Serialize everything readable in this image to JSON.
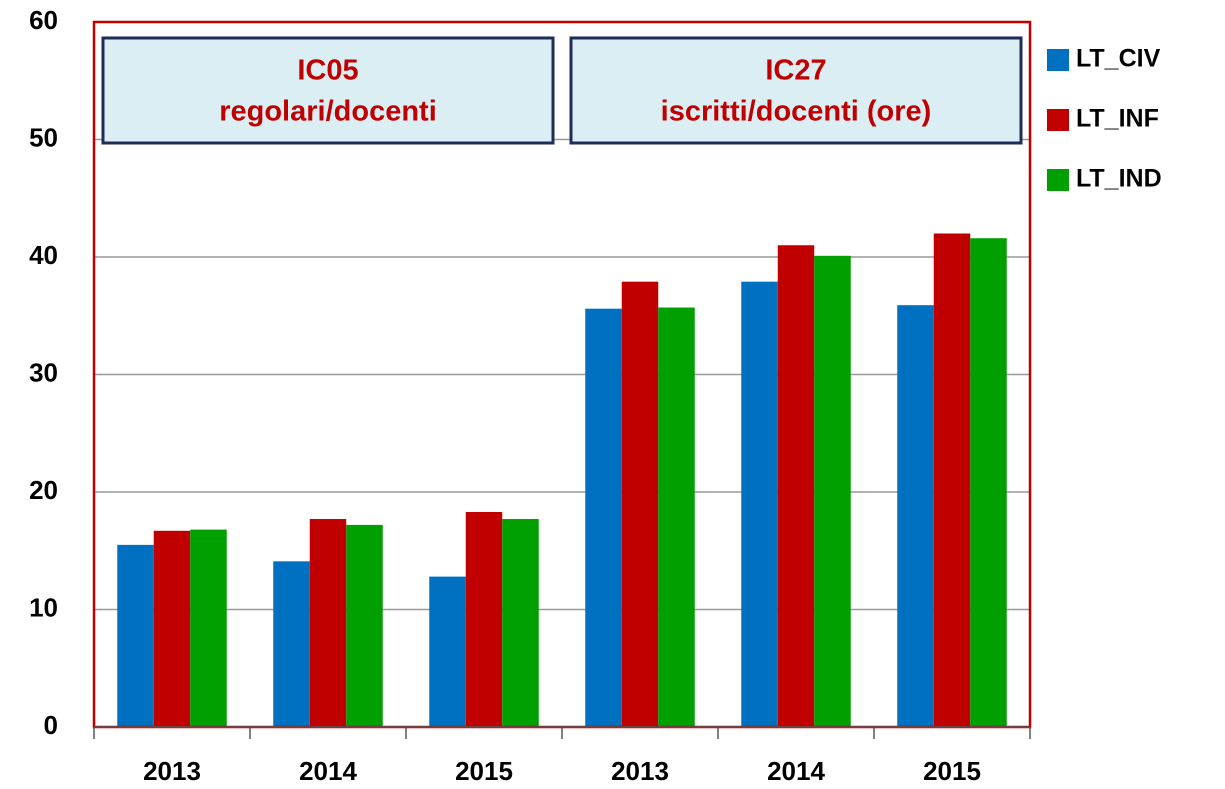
{
  "chart_data": {
    "type": "bar",
    "categories": [
      "2013",
      "2014",
      "2015",
      "2013",
      "2014",
      "2015"
    ],
    "series": [
      {
        "name": "LT_CIV",
        "color": "#0070c0",
        "values": [
          15.5,
          14.1,
          12.8,
          35.6,
          37.9,
          35.9
        ]
      },
      {
        "name": "LT_INF",
        "color": "#c00000",
        "values": [
          16.7,
          17.7,
          18.3,
          37.9,
          41.0,
          42.0
        ]
      },
      {
        "name": "LT_IND",
        "color": "#00a000",
        "values": [
          16.8,
          17.2,
          17.7,
          35.7,
          40.1,
          41.6
        ]
      }
    ],
    "annotations": [
      {
        "lines": [
          "IC05",
          "regolari/docenti"
        ]
      },
      {
        "lines": [
          "IC27",
          "iscritti/docenti (ore)"
        ]
      }
    ],
    "ylim": [
      0,
      60
    ],
    "yticks": [
      0,
      10,
      20,
      30,
      40,
      50,
      60
    ],
    "grid": true,
    "legend": "right"
  }
}
